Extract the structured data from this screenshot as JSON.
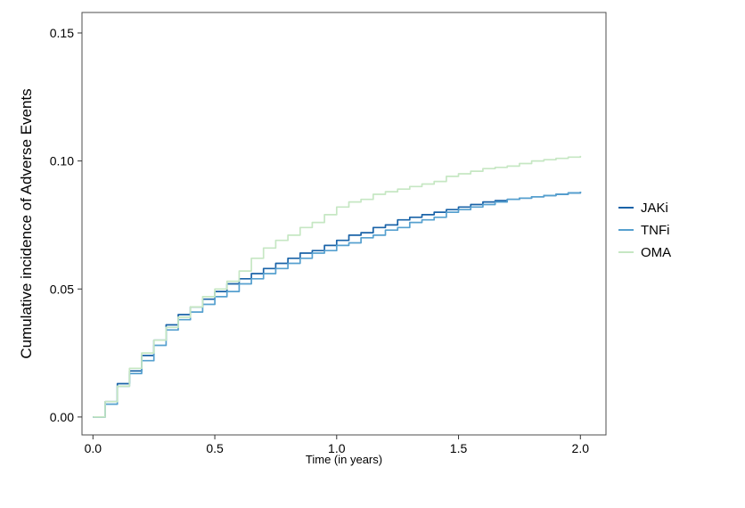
{
  "figure": {
    "background": "#ffffff",
    "panel_border_color": "#4d4d4d",
    "tick_color": "#333333",
    "text_color": "#000000"
  },
  "chart_data": {
    "type": "line",
    "subtype": "step-cumulative-incidence",
    "title": "",
    "xlabel": "Time (in years)",
    "ylabel": "Cumulative incidence of Adverse Events",
    "xlim": [
      -0.045,
      2.105
    ],
    "ylim": [
      -0.007,
      0.158
    ],
    "xticks": [
      0.0,
      0.5,
      1.0,
      1.5,
      2.0
    ],
    "xtick_labels": [
      "0.0",
      "0.5",
      "1.0",
      "1.5",
      "2.0"
    ],
    "yticks": [
      0.0,
      0.05,
      0.1,
      0.15
    ],
    "ytick_labels": [
      "0.00",
      "0.05",
      "0.10",
      "0.15"
    ],
    "grid": false,
    "legend_position": "right",
    "x": [
      0,
      0.05,
      0.1,
      0.15,
      0.2,
      0.25,
      0.3,
      0.35,
      0.4,
      0.45,
      0.5,
      0.55,
      0.6,
      0.65,
      0.7,
      0.75,
      0.8,
      0.85,
      0.9,
      0.95,
      1,
      1.05,
      1.1,
      1.15,
      1.2,
      1.25,
      1.3,
      1.35,
      1.4,
      1.45,
      1.5,
      1.55,
      1.6,
      1.65,
      1.7,
      1.75,
      1.8,
      1.85,
      1.9,
      1.95,
      2
    ],
    "series": [
      {
        "name": "JAKi",
        "color": "#1a63a8",
        "values": [
          0,
          0.006,
          0.013,
          0.018,
          0.024,
          0.03,
          0.036,
          0.04,
          0.043,
          0.046,
          0.049,
          0.052,
          0.054,
          0.056,
          0.058,
          0.06,
          0.062,
          0.064,
          0.065,
          0.067,
          0.069,
          0.071,
          0.072,
          0.074,
          0.075,
          0.077,
          0.078,
          0.079,
          0.08,
          0.081,
          0.082,
          0.083,
          0.084,
          0.0845,
          0.085,
          0.0855,
          0.086,
          0.0865,
          0.087,
          0.0875,
          0.088
        ]
      },
      {
        "name": "TNFi",
        "color": "#56a0cf",
        "values": [
          0,
          0.005,
          0.012,
          0.017,
          0.022,
          0.028,
          0.034,
          0.038,
          0.041,
          0.044,
          0.047,
          0.049,
          0.052,
          0.054,
          0.056,
          0.058,
          0.06,
          0.062,
          0.064,
          0.065,
          0.067,
          0.068,
          0.07,
          0.071,
          0.073,
          0.074,
          0.076,
          0.077,
          0.078,
          0.08,
          0.081,
          0.082,
          0.083,
          0.084,
          0.085,
          0.0855,
          0.086,
          0.0865,
          0.087,
          0.0875,
          0.088
        ]
      },
      {
        "name": "OMA",
        "color": "#c6e7c3",
        "values": [
          0,
          0.006,
          0.012,
          0.019,
          0.025,
          0.03,
          0.035,
          0.039,
          0.043,
          0.047,
          0.05,
          0.053,
          0.057,
          0.062,
          0.066,
          0.069,
          0.071,
          0.074,
          0.076,
          0.079,
          0.082,
          0.084,
          0.085,
          0.087,
          0.088,
          0.089,
          0.09,
          0.091,
          0.092,
          0.094,
          0.095,
          0.096,
          0.097,
          0.0975,
          0.098,
          0.099,
          0.1,
          0.1005,
          0.101,
          0.1015,
          0.102
        ]
      }
    ]
  }
}
